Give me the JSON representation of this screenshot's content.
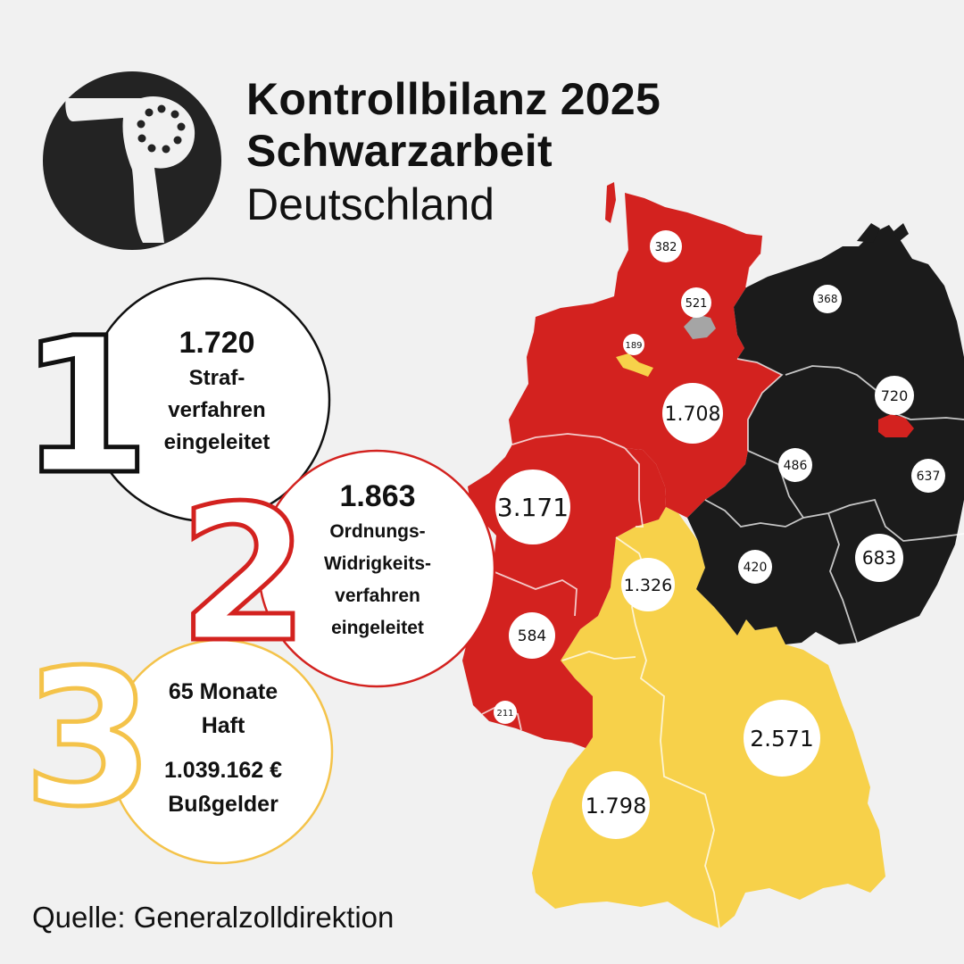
{
  "title": {
    "line1": "Kontrollbilanz 2025",
    "line2": "Schwarzarbeit",
    "line3": "Deutschland"
  },
  "icon": "hairdryer-icon",
  "colors": {
    "red": "#d3221f",
    "black": "#1b1b1b",
    "gold": "#f7d14a",
    "background": "#f1f1f1",
    "hamburg": "#a5a5a5"
  },
  "stats": {
    "stat1": {
      "digit": "1",
      "value": "1.720",
      "lines": [
        "Straf-",
        "verfahren",
        "eingeleitet"
      ]
    },
    "stat2": {
      "digit": "2",
      "value": "1.863",
      "lines": [
        "Ordnungs-",
        "Widrigkeits-",
        "verfahren",
        "eingeleitet"
      ]
    },
    "stat3": {
      "digit": "3",
      "lines1": [
        "65 Monate",
        "Haft"
      ],
      "lines2": [
        "1.039.162 €",
        "Bußgelder"
      ]
    }
  },
  "regions": {
    "schleswig_holstein": {
      "value": "382",
      "color": "red"
    },
    "hamburg": {
      "value": "521",
      "color": "hamburg"
    },
    "bremen": {
      "value": "189",
      "color": "gold"
    },
    "niedersachsen": {
      "value": "1.708",
      "color": "red"
    },
    "mecklenburg_vorpommern": {
      "value": "368",
      "color": "black"
    },
    "berlin": {
      "value": "720",
      "color": "red"
    },
    "brandenburg": {
      "value": "637",
      "color": "black"
    },
    "sachsen_anhalt": {
      "value": "486",
      "color": "black"
    },
    "nordrhein_westfalen": {
      "value": "3.171",
      "color": "red"
    },
    "hessen": {
      "value": "1.326",
      "color": "gold"
    },
    "thueringen": {
      "value": "420",
      "color": "black"
    },
    "sachsen": {
      "value": "683",
      "color": "black"
    },
    "rheinland_pfalz": {
      "value": "584",
      "color": "red"
    },
    "saarland": {
      "value": "211",
      "color": "red"
    },
    "bayern": {
      "value": "2.571",
      "color": "gold"
    },
    "baden_wuerttemberg": {
      "value": "1.798",
      "color": "gold"
    }
  },
  "source": "Quelle: Generalzolldirektion"
}
